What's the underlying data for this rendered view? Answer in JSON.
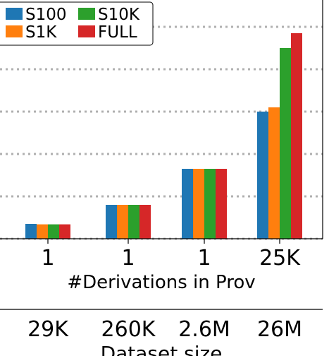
{
  "chart_data": {
    "type": "bar",
    "categories": [
      "1",
      "1",
      "1",
      "25K"
    ],
    "xlabel": "#Derivations in Prov",
    "ylabel": "",
    "ylim": [
      0,
      5
    ],
    "grid": "horizontal dotted",
    "legend": "top-left",
    "series": [
      {
        "name": "S100",
        "color": "#1f77b4",
        "values": [
          0.35,
          0.8,
          1.65,
          3.0
        ]
      },
      {
        "name": "S1K",
        "color": "#ff7f0e",
        "values": [
          0.34,
          0.8,
          1.65,
          3.1
        ]
      },
      {
        "name": "S10K",
        "color": "#2ca02c",
        "values": [
          0.34,
          0.8,
          1.65,
          4.5
        ]
      },
      {
        "name": "FULL",
        "color": "#d62728",
        "values": [
          0.34,
          0.8,
          1.65,
          4.85
        ]
      }
    ],
    "secondary_axis": {
      "label": "Dataset size",
      "tick_labels": [
        "29K",
        "260K",
        "2.6M",
        "26M"
      ]
    }
  }
}
